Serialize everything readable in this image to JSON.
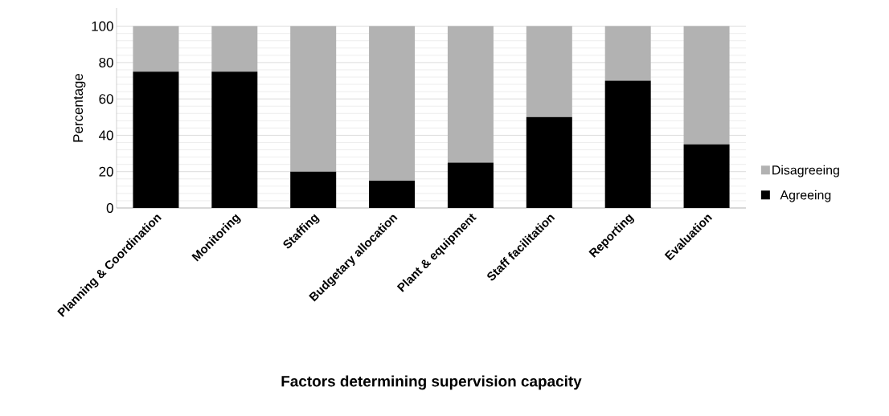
{
  "chart_data": {
    "type": "bar",
    "stacked": true,
    "xlabel": "Factors determining supervision capacity",
    "ylabel": "Percentage",
    "categories": [
      "Planning & Coordination",
      "Monitoring",
      "Staffing",
      "Budgetary allocation",
      "Plant & equipment",
      "Staff facilitation",
      "Reporting",
      "Evaluation"
    ],
    "series": [
      {
        "name": "Agreeing",
        "color": "#000000",
        "values": [
          75,
          75,
          20,
          15,
          25,
          50,
          70,
          35
        ]
      },
      {
        "name": "Disagreeing",
        "color": "#b2b2b2",
        "values": [
          25,
          25,
          80,
          85,
          75,
          50,
          30,
          65
        ]
      }
    ],
    "ylim": [
      0,
      110
    ],
    "yticks": [
      0,
      20,
      40,
      60,
      80,
      100
    ],
    "grid": "y",
    "legend": "right"
  }
}
